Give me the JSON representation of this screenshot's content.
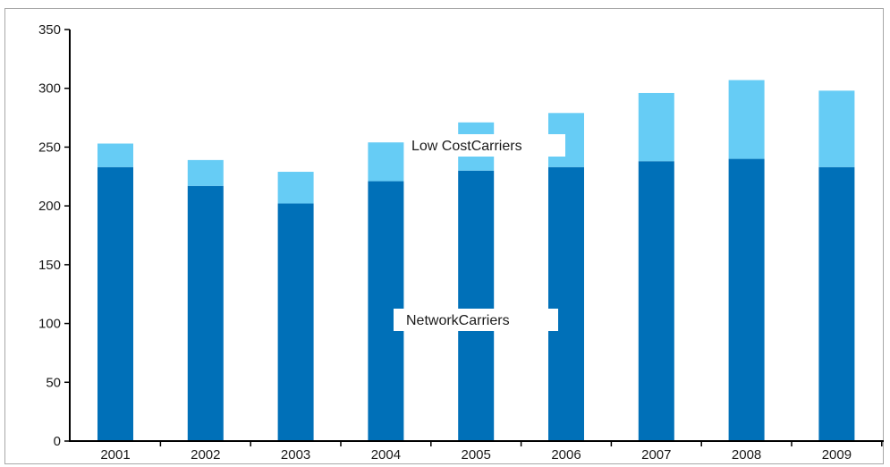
{
  "chart_data": {
    "type": "bar",
    "stacked": true,
    "title": "",
    "xlabel": "",
    "ylabel": "",
    "categories": [
      "2001",
      "2002",
      "2003",
      "2004",
      "2005",
      "2006",
      "2007",
      "2008",
      "2009"
    ],
    "series": [
      {
        "name": "NetworkCarriers",
        "color": "#0070b8",
        "values": [
          233,
          217,
          202,
          221,
          230,
          233,
          238,
          240,
          233
        ]
      },
      {
        "name": "Low CostCarriers",
        "color": "#66ccf5",
        "values": [
          20,
          22,
          27,
          33,
          41,
          46,
          58,
          67,
          65
        ]
      }
    ],
    "ylim": [
      0,
      350
    ],
    "yticks": [
      "0",
      "50",
      "100",
      "150",
      "200",
      "250",
      "300",
      "350"
    ],
    "grid": false,
    "legend": "inline labels on bars"
  }
}
